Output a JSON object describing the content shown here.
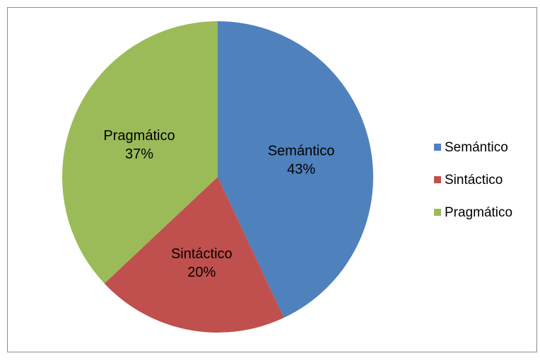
{
  "chart_data": {
    "type": "pie",
    "title": "",
    "slices": [
      {
        "label": "Semántico",
        "value": 43,
        "pct_label": "43%",
        "color": "#4f81bd"
      },
      {
        "label": "Sintáctico",
        "value": 20,
        "pct_label": "20%",
        "color": "#c0504d"
      },
      {
        "label": "Pragmático",
        "value": 37,
        "pct_label": "37%",
        "color": "#9bbb59"
      }
    ],
    "start_angle_deg": 0,
    "direction": "clockwise",
    "legend_position": "right"
  }
}
